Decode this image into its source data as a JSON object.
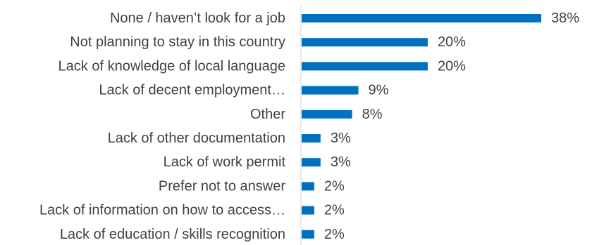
{
  "chart_data": {
    "type": "bar",
    "orientation": "horizontal",
    "categories": [
      "None / haven’t look for a job",
      "Not planning to stay in this country",
      "Lack of knowledge of local language",
      "Lack of decent employment…",
      "Other",
      "Lack of other documentation",
      "Lack of work permit",
      "Prefer not to answer",
      "Lack of information on how to access…",
      "Lack of education / skills recognition"
    ],
    "values": [
      38,
      20,
      20,
      9,
      8,
      3,
      3,
      2,
      2,
      2
    ],
    "value_labels": [
      "38%",
      "20%",
      "20%",
      "9%",
      "8%",
      "3%",
      "3%",
      "2%",
      "2%",
      "2%"
    ],
    "title": "",
    "xlabel": "",
    "ylabel": "",
    "xlim": [
      0,
      38
    ],
    "grid": false,
    "bar_color": "#0070C0",
    "axis_color": "#D9D9D9",
    "text_color": "#404040"
  }
}
